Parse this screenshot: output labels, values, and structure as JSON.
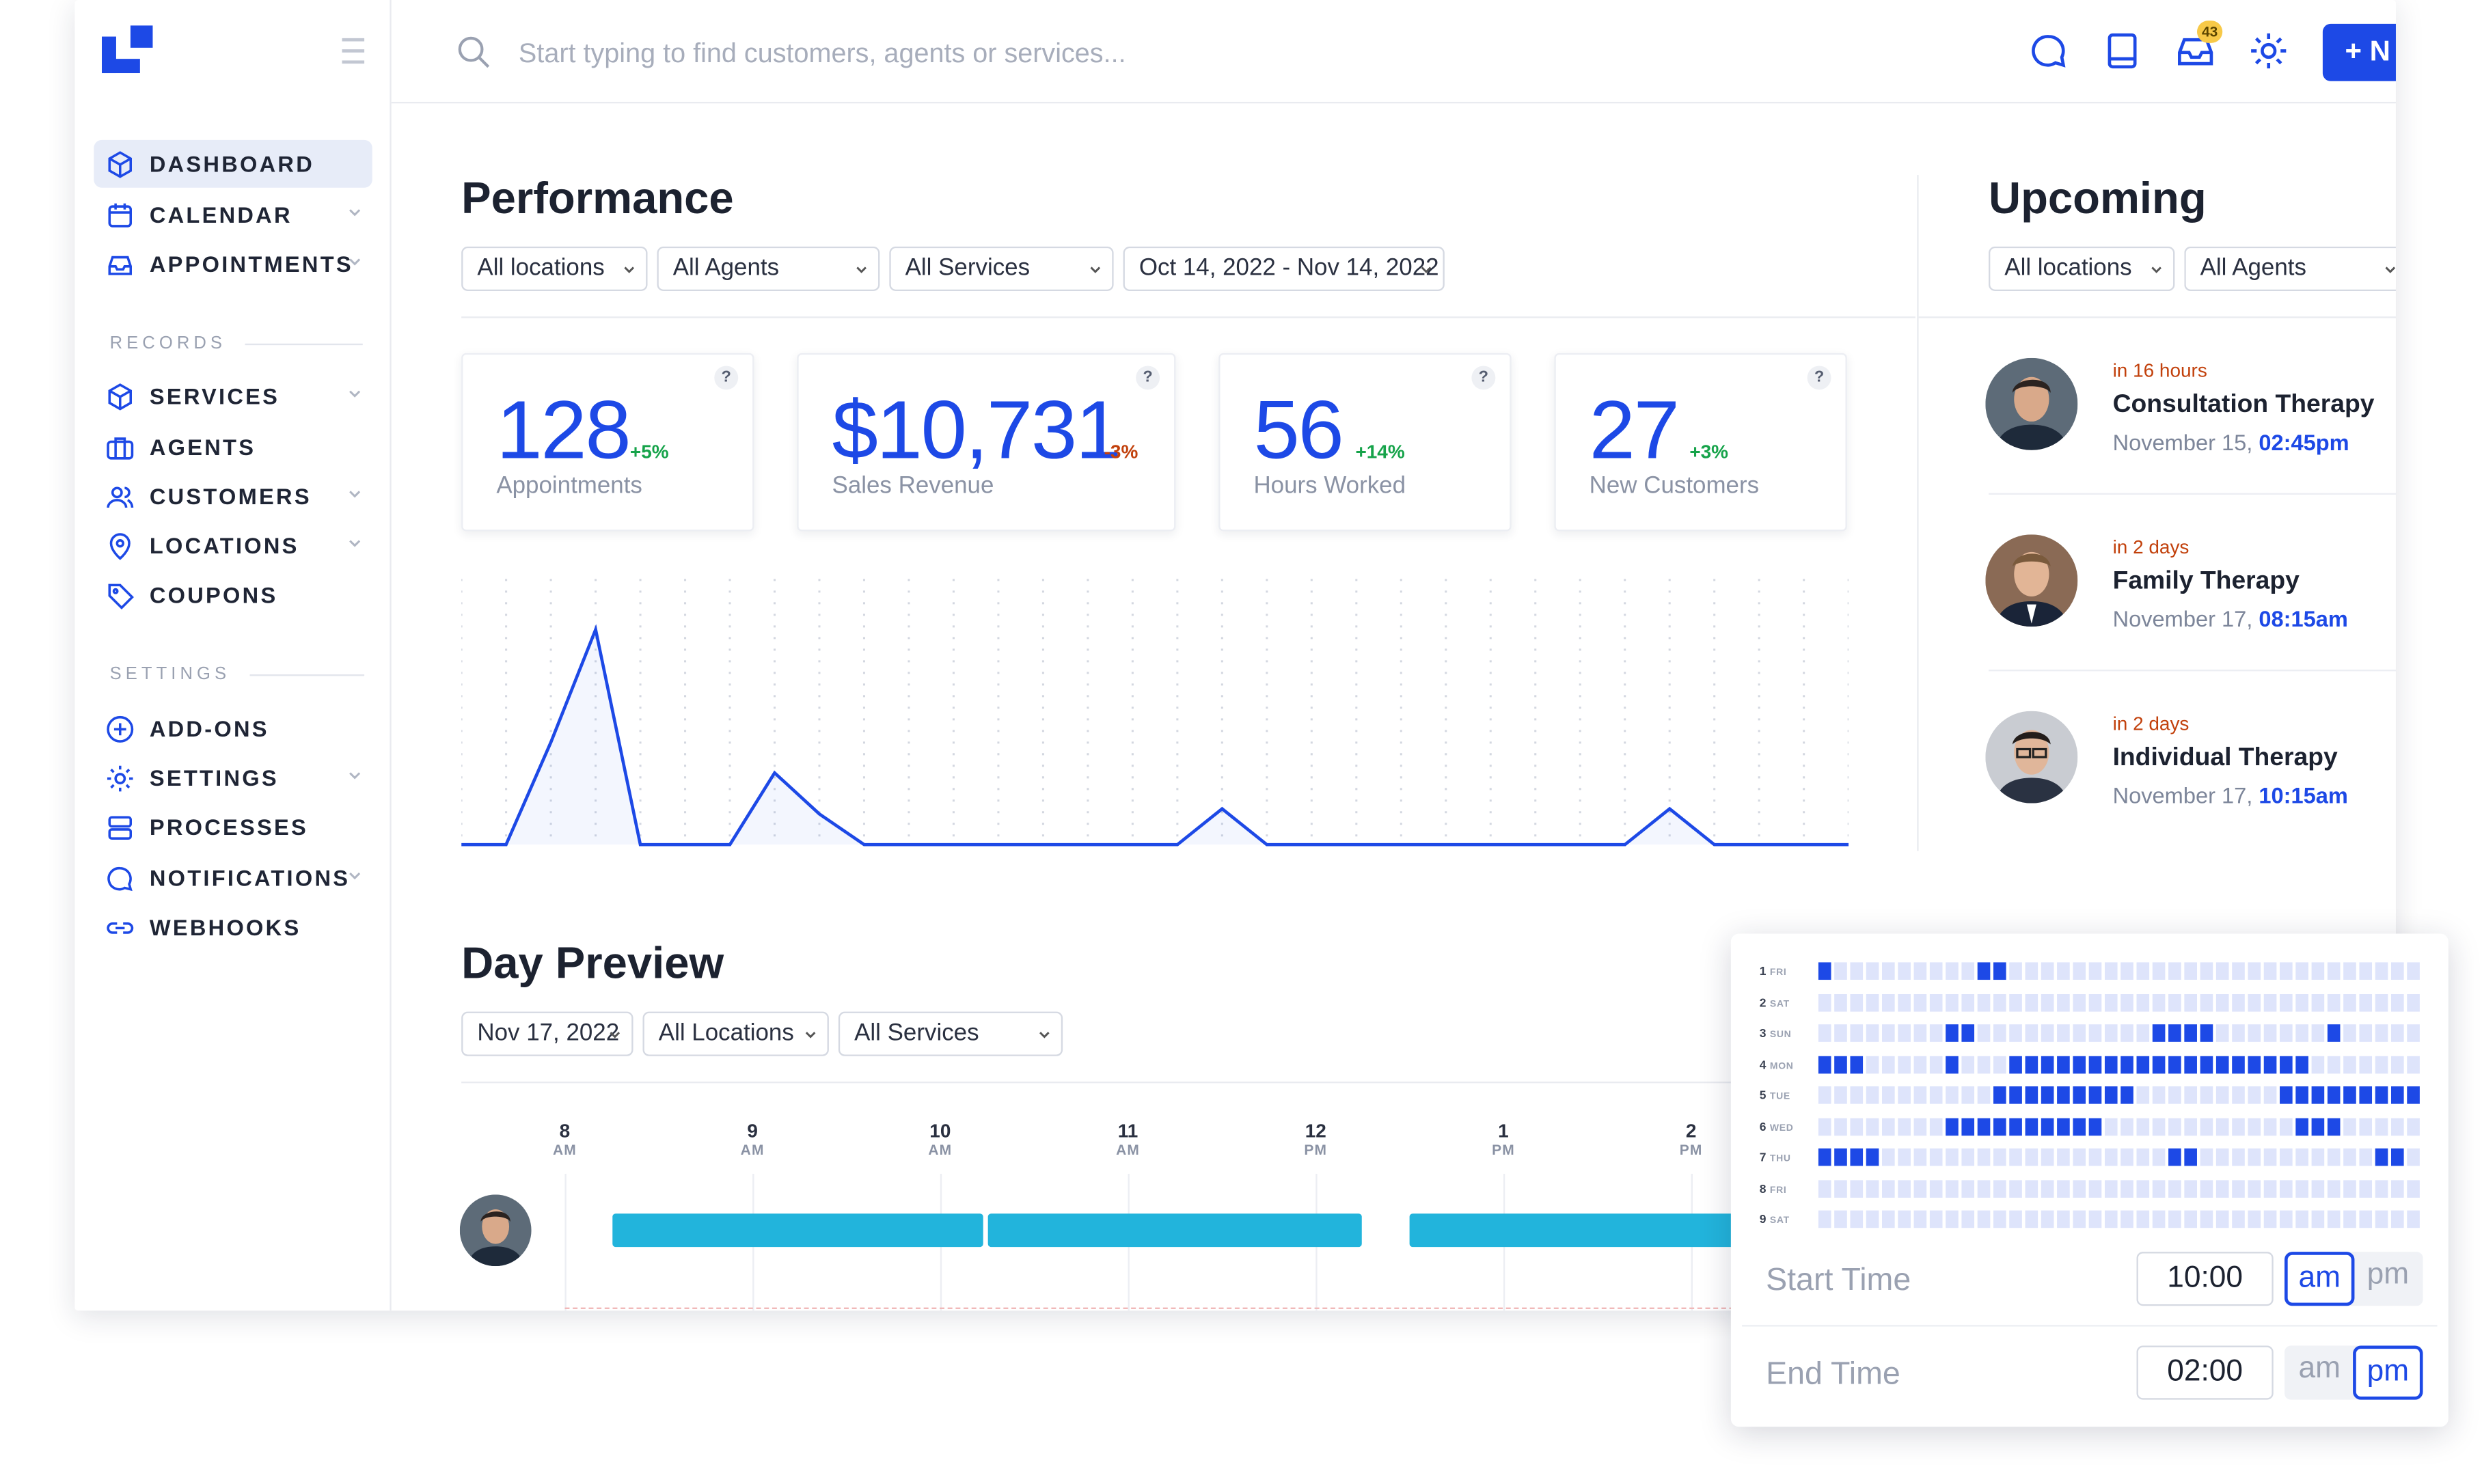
{
  "search": {
    "placeholder": "Start typing to find customers, agents or services..."
  },
  "topbar": {
    "inbox_badge": "43",
    "new_button_label": "+ N"
  },
  "sidebar": {
    "items": [
      {
        "label": "DASHBOARD",
        "icon": "cube-icon"
      },
      {
        "label": "CALENDAR",
        "icon": "calendar-icon"
      },
      {
        "label": "APPOINTMENTS",
        "icon": "inbox-icon"
      }
    ],
    "records_title": "RECORDS",
    "records": [
      {
        "label": "SERVICES",
        "icon": "cube-icon"
      },
      {
        "label": "AGENTS",
        "icon": "briefcase-icon"
      },
      {
        "label": "CUSTOMERS",
        "icon": "users-icon"
      },
      {
        "label": "LOCATIONS",
        "icon": "map-pin-icon"
      },
      {
        "label": "COUPONS",
        "icon": "tag-icon"
      }
    ],
    "settings_title": "SETTINGS",
    "settings": [
      {
        "label": "ADD-ONS",
        "icon": "plus-circle-icon"
      },
      {
        "label": "SETTINGS",
        "icon": "gear-icon"
      },
      {
        "label": "PROCESSES",
        "icon": "server-icon"
      },
      {
        "label": "NOTIFICATIONS",
        "icon": "chat-icon"
      },
      {
        "label": "WEBHOOKS",
        "icon": "link-icon"
      }
    ]
  },
  "performance": {
    "title": "Performance",
    "filters": [
      "All locations",
      "All Agents",
      "All Services",
      "Oct 14, 2022 - Nov 14, 2022"
    ],
    "cards": [
      {
        "value": "128",
        "change": "+5%",
        "label": "Appointments",
        "help": "?"
      },
      {
        "value": "$10,731",
        "change": "-3%",
        "label": "Sales Revenue",
        "help": "?"
      },
      {
        "value": "56",
        "change": "+14%",
        "label": "Hours Worked",
        "help": "?"
      },
      {
        "value": "27",
        "change": "+3%",
        "label": "New Customers",
        "help": "?"
      }
    ],
    "colors": {
      "accent": "#1d49e6",
      "positive": "#16a34a",
      "negative": "#c2410c"
    }
  },
  "chart_data": {
    "type": "line",
    "values": [
      0,
      0,
      2,
      4.2,
      0,
      0,
      0,
      1.4,
      0.6,
      0,
      0,
      0,
      0,
      0,
      0,
      0,
      0,
      0.7,
      0,
      0,
      0,
      0,
      0,
      0,
      0,
      0,
      0,
      0.7,
      0,
      0,
      0,
      0
    ],
    "ylim": [
      0,
      5
    ],
    "grid": "dotted vertical"
  },
  "upcoming": {
    "title": "Upcoming",
    "filters": [
      "All locations",
      "All Agents"
    ],
    "items": [
      {
        "when": "in 16 hours",
        "service": "Consultation Therapy",
        "date": "November 15,",
        "time": "02:45pm"
      },
      {
        "when": "in 2 days",
        "service": "Family Therapy",
        "date": "November 17,",
        "time": "08:15am"
      },
      {
        "when": "in 2 days",
        "service": "Individual Therapy",
        "date": "November 17,",
        "time": "10:15am"
      }
    ]
  },
  "day_preview": {
    "title": "Day Preview",
    "filters": [
      "Nov 17, 2022",
      "All Locations",
      "All Services"
    ],
    "ticks": [
      {
        "n": "8",
        "a": "AM"
      },
      {
        "n": "9",
        "a": "AM"
      },
      {
        "n": "10",
        "a": "AM"
      },
      {
        "n": "11",
        "a": "AM"
      },
      {
        "n": "12",
        "a": "PM"
      },
      {
        "n": "1",
        "a": "PM"
      },
      {
        "n": "2",
        "a": "PM"
      }
    ]
  },
  "schedule": {
    "rows": [
      {
        "num": "1",
        "day": "FRI",
        "on": [
          0,
          10,
          11
        ]
      },
      {
        "num": "2",
        "day": "SAT",
        "on": []
      },
      {
        "num": "3",
        "day": "SUN",
        "on": [
          8,
          9,
          21,
          22,
          23,
          24,
          32
        ]
      },
      {
        "num": "4",
        "day": "MON",
        "on": [
          0,
          1,
          2,
          8,
          12,
          13,
          14,
          15,
          16,
          17,
          18,
          19,
          20,
          21,
          22,
          23,
          24,
          25,
          26,
          27,
          28,
          29,
          30
        ]
      },
      {
        "num": "5",
        "day": "TUE",
        "on": [
          11,
          12,
          13,
          14,
          15,
          16,
          17,
          18,
          19,
          29,
          30,
          31,
          32,
          33,
          34,
          35,
          36,
          37
        ]
      },
      {
        "num": "6",
        "day": "WED",
        "on": [
          8,
          9,
          10,
          11,
          12,
          13,
          14,
          15,
          16,
          17,
          30,
          31,
          32
        ]
      },
      {
        "num": "7",
        "day": "THU",
        "on": [
          0,
          1,
          2,
          3,
          22,
          23,
          35,
          36
        ]
      },
      {
        "num": "8",
        "day": "FRI",
        "on": []
      },
      {
        "num": "9",
        "day": "SAT",
        "on": []
      }
    ],
    "columns": 38,
    "start_label": "Start Time",
    "start_value": "10:00",
    "start_period": "am",
    "end_label": "End Time",
    "end_value": "02:00",
    "end_period": "pm",
    "am": "am",
    "pm": "pm"
  }
}
